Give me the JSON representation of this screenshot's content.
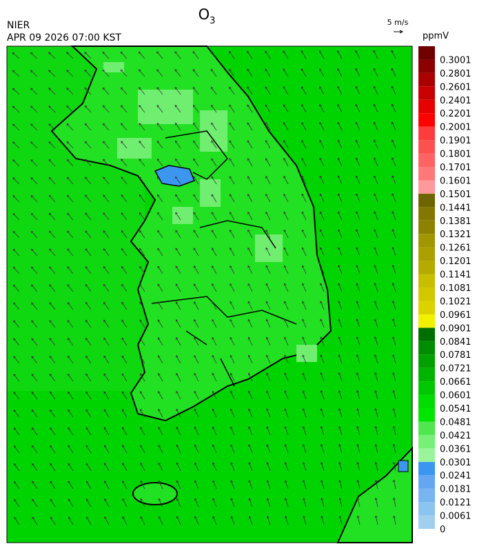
{
  "header": {
    "agency": "NIER",
    "datetime": "APR 09 2026 07:00 KST",
    "title": {
      "main": "O",
      "sub": "3"
    },
    "wind_scale": "5 m/s"
  },
  "colorbar": {
    "unit": "ppmV",
    "labels": [
      "0",
      "0.0061",
      "0.0121",
      "0.0181",
      "0.0241",
      "0.0301",
      "0.0361",
      "0.0421",
      "0.0481",
      "0.0541",
      "0.0601",
      "0.0661",
      "0.0721",
      "0.0781",
      "0.0841",
      "0.0901",
      "0.0961",
      "0.1021",
      "0.1081",
      "0.1141",
      "0.1201",
      "0.1261",
      "0.1321",
      "0.1381",
      "0.1441",
      "0.1501",
      "0.1601",
      "0.1701",
      "0.1801",
      "0.1901",
      "0.2001",
      "0.2201",
      "0.2401",
      "0.2601",
      "0.2801",
      "0.3001"
    ],
    "colors": [
      "#a0d0ee",
      "#8cc4f0",
      "#78b4f0",
      "#64a6f0",
      "#3c96f0",
      "#9af59a",
      "#78f078",
      "#50e650",
      "#00e600",
      "#00dc00",
      "#00c800",
      "#00b400",
      "#00a000",
      "#008c00",
      "#006e00",
      "#f0f000",
      "#dcd200",
      "#d2c800",
      "#c8be00",
      "#b4aa00",
      "#aaa000",
      "#a09600",
      "#8c8200",
      "#827800",
      "#6e6400",
      "#ff9a9a",
      "#ff7878",
      "#ff6464",
      "#ff5050",
      "#ff3c3c",
      "#ff0000",
      "#e60000",
      "#c80000",
      "#aa0000",
      "#8c0000",
      "#6e0000"
    ]
  }
}
